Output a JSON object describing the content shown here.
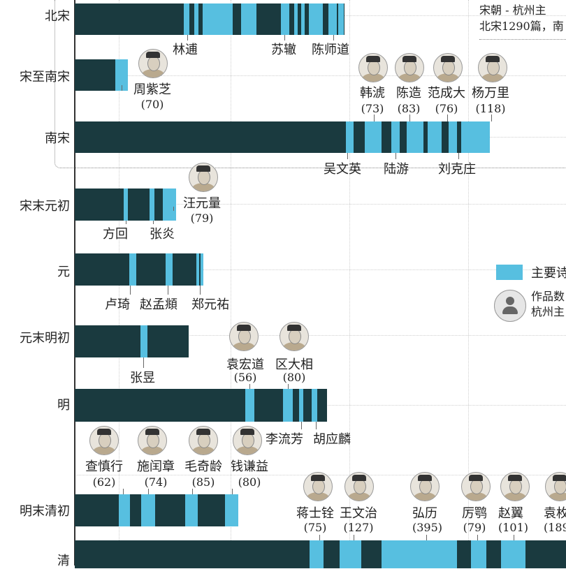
{
  "chart_data": {
    "type": "bar",
    "note_lines": [
      "宋朝 - 杭州主",
      "北宋1290篇，南"
    ],
    "legend": {
      "main_poet_label": "主要诗",
      "count_label_lines": [
        "作品数",
        "杭州主"
      ]
    },
    "rows": [
      {
        "name": "北宋",
        "poets": [
          {
            "name": "林逋"
          },
          {
            "name": "苏辙"
          },
          {
            "name": "陈师道"
          }
        ]
      },
      {
        "name": "宋至南宋",
        "poets": [
          {
            "name": "周紫芝",
            "count": "(70)"
          }
        ]
      },
      {
        "name": "南宋",
        "poets": [
          {
            "name": "韩淲",
            "count": "(73)"
          },
          {
            "name": "陈造",
            "count": "(83)"
          },
          {
            "name": "范成大",
            "count": "(76)"
          },
          {
            "name": "杨万里",
            "count": "(118)"
          },
          {
            "name": "吴文英"
          },
          {
            "name": "陆游"
          },
          {
            "name": "刘克庄"
          }
        ]
      },
      {
        "name": "宋末元初",
        "poets": [
          {
            "name": "汪元量",
            "count": "(79)"
          },
          {
            "name": "方回"
          },
          {
            "name": "张炎"
          }
        ]
      },
      {
        "name": "元",
        "poets": [
          {
            "name": "卢琦"
          },
          {
            "name": "赵孟頫"
          },
          {
            "name": "郑元祐"
          }
        ]
      },
      {
        "name": "元末明初",
        "poets": [
          {
            "name": "张昱"
          }
        ]
      },
      {
        "name": "明",
        "poets": [
          {
            "name": "袁宏道",
            "count": "(56)"
          },
          {
            "name": "区大相",
            "count": "(80)"
          },
          {
            "name": "李流芳"
          },
          {
            "name": "胡应麟"
          }
        ]
      },
      {
        "name": "明末清初",
        "poets": [
          {
            "name": "查慎行",
            "count": "(62)"
          },
          {
            "name": "施闰章",
            "count": "(74)"
          },
          {
            "name": "毛奇龄",
            "count": "(85)"
          },
          {
            "name": "钱谦益",
            "count": "(80)"
          }
        ]
      },
      {
        "name": "清",
        "poets": [
          {
            "name": "蒋士铨",
            "count": "(75)"
          },
          {
            "name": "王文治",
            "count": "(127)"
          },
          {
            "name": "弘历",
            "count": "(395)"
          },
          {
            "name": "厉鹗",
            "count": "(79)"
          },
          {
            "name": "赵翼",
            "count": "(101)"
          },
          {
            "name": "袁枚",
            "count": "(189"
          }
        ]
      }
    ]
  }
}
